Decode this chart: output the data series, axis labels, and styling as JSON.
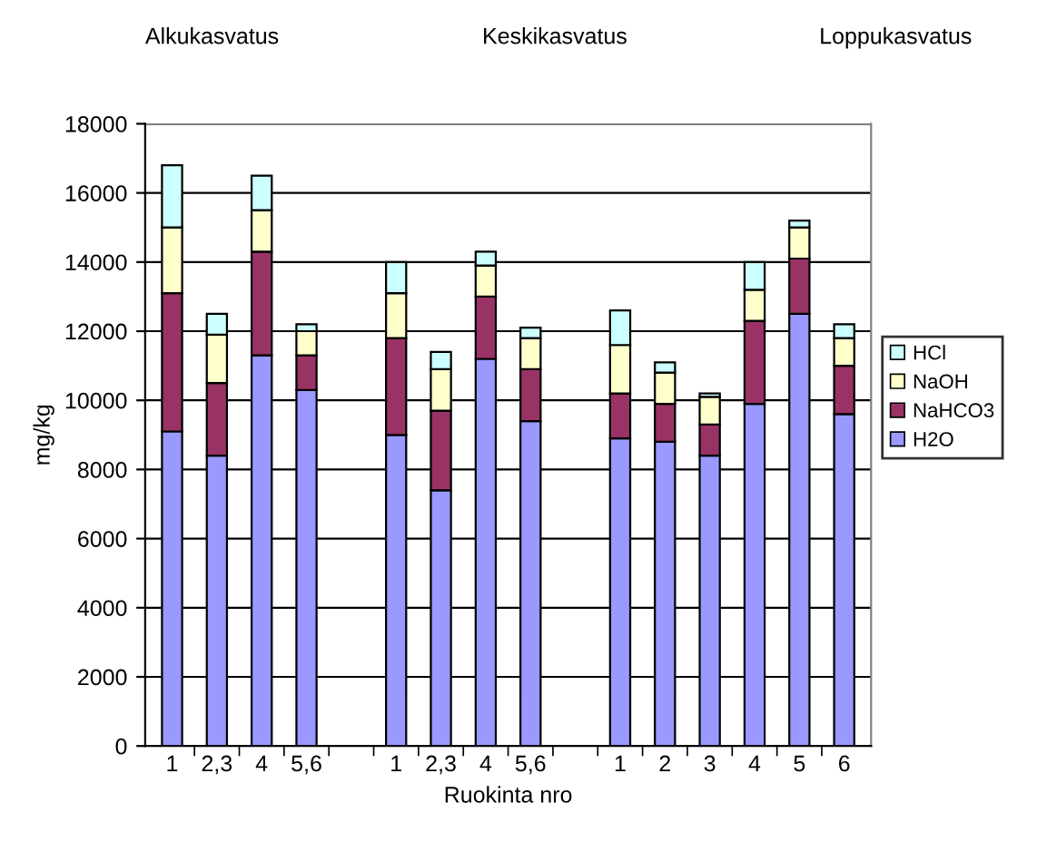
{
  "chart_data": {
    "type": "bar",
    "stacked": true,
    "xlabel": "Ruokinta nro",
    "ylabel": "mg/kg",
    "annotations": [
      "Alkukasvatus",
      "Keskikasvatus",
      "Loppukasvatus"
    ],
    "categories": [
      "1",
      "2,3",
      "4",
      "5,6",
      null,
      "1",
      "2,3",
      "4",
      "5,6",
      null,
      "1",
      "2",
      "3",
      "4",
      "5",
      "6"
    ],
    "series": [
      {
        "name": "H2O",
        "color": "#9999ff",
        "values": [
          9100,
          8400,
          11300,
          10300,
          null,
          9000,
          7400,
          11200,
          9400,
          null,
          8900,
          8800,
          8400,
          9900,
          12500,
          9600
        ]
      },
      {
        "name": "NaHCO3",
        "color": "#993366",
        "values": [
          4000,
          2100,
          3000,
          1000,
          null,
          2800,
          2300,
          1800,
          1500,
          null,
          1300,
          1100,
          900,
          2400,
          1600,
          1400
        ]
      },
      {
        "name": "NaOH",
        "color": "#ffffcc",
        "values": [
          1900,
          1400,
          1200,
          700,
          null,
          1300,
          1200,
          900,
          900,
          null,
          1400,
          900,
          800,
          900,
          900,
          800
        ]
      },
      {
        "name": "HCl",
        "color": "#ccffff",
        "values": [
          1800,
          600,
          1000,
          200,
          null,
          900,
          500,
          400,
          300,
          null,
          1000,
          300,
          100,
          800,
          200,
          400
        ]
      }
    ],
    "ylim": [
      0,
      18000
    ],
    "yticks": [
      0,
      2000,
      4000,
      6000,
      8000,
      10000,
      12000,
      14000,
      16000,
      18000
    ],
    "grid": "y",
    "legend": "right"
  }
}
